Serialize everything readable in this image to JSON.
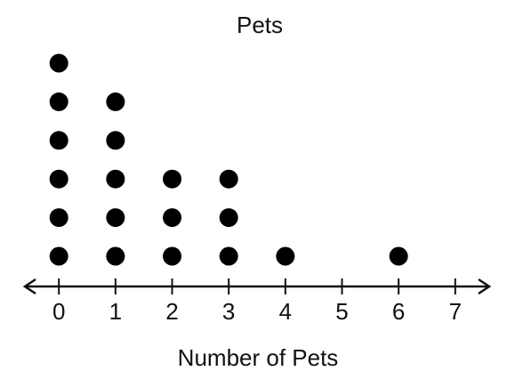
{
  "chart_data": {
    "type": "dot",
    "title": "Pets",
    "x_label": "Number of Pets",
    "x": [
      0,
      1,
      2,
      3,
      4,
      5,
      6,
      7
    ],
    "values": [
      6,
      5,
      3,
      3,
      1,
      0,
      1,
      0
    ],
    "color": "#000000",
    "xlim": [
      -0.6,
      7.6
    ],
    "xticks": [
      0,
      1,
      2,
      3,
      4,
      5,
      6,
      7
    ]
  }
}
